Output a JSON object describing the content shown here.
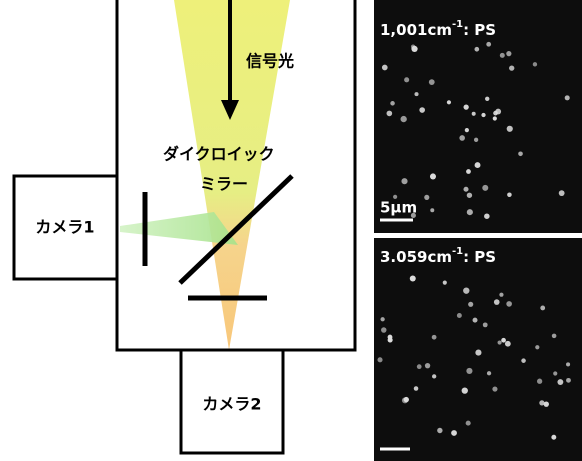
{
  "diagram": {
    "signal_label": "信号光",
    "mirror_label_1": "ダイクロイック",
    "mirror_label_2": "ミラー",
    "camera1": "カメラ1",
    "camera2": "カメラ2"
  },
  "images": [
    {
      "label_main": "1,001cm",
      "label_sup": "-1",
      "label_tail": ": PS",
      "scale_label": "5μm"
    },
    {
      "label_main": "3.059cm",
      "label_sup": "-1",
      "label_tail": ": PS"
    }
  ]
}
